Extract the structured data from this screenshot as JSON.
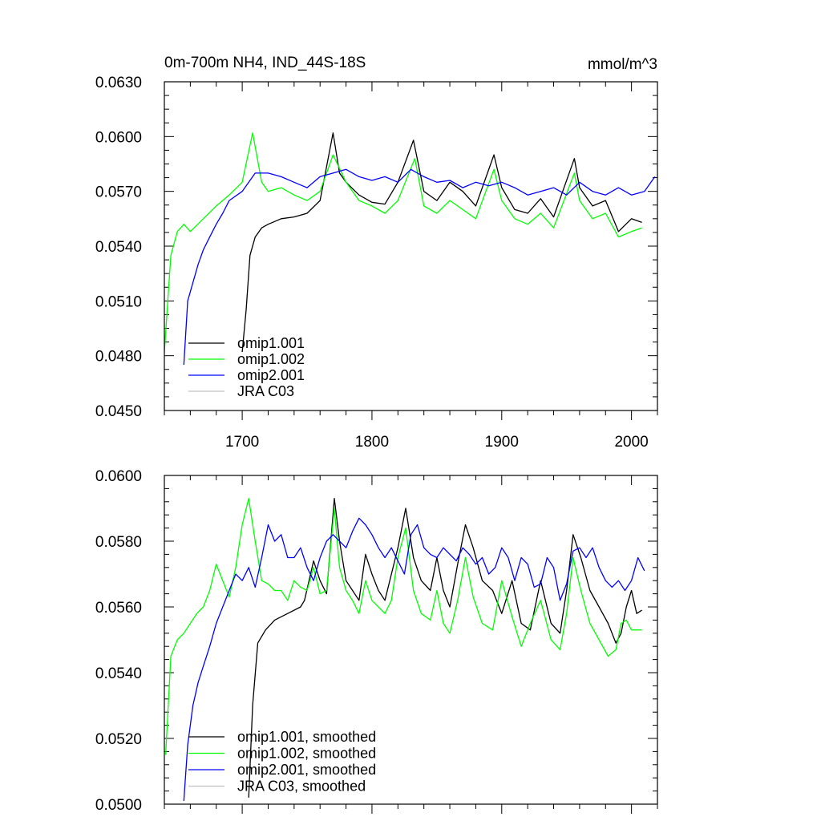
{
  "chart_data": [
    {
      "type": "line",
      "panel": "top",
      "title": "0m-700m NH4, IND_44S-18S",
      "units": "mmol/m^3",
      "xlim": [
        1640,
        2020
      ],
      "ylim": [
        0.045,
        0.063
      ],
      "xticks": [
        1700,
        1800,
        1900,
        2000
      ],
      "yticks": [
        0.045,
        0.048,
        0.051,
        0.054,
        0.057,
        0.06,
        0.063
      ],
      "ytick_labels": [
        "0.0450",
        "0.0480",
        "0.0510",
        "0.0540",
        "0.0570",
        "0.0600",
        "0.0630"
      ],
      "legend": {
        "position": "bottom-left"
      },
      "series": [
        {
          "name": "omip1.001",
          "color": "#000000",
          "x": [
            1700,
            1703,
            1706,
            1710,
            1715,
            1720,
            1730,
            1740,
            1750,
            1760,
            1770,
            1775,
            1780,
            1790,
            1800,
            1810,
            1820,
            1832,
            1840,
            1850,
            1860,
            1870,
            1880,
            1894,
            1900,
            1910,
            1920,
            1930,
            1940,
            1956,
            1960,
            1970,
            1980,
            1990,
            2000,
            2008
          ],
          "values": [
            0.0482,
            0.0505,
            0.0535,
            0.0545,
            0.055,
            0.0552,
            0.0555,
            0.0556,
            0.0558,
            0.0565,
            0.0602,
            0.058,
            0.0575,
            0.0568,
            0.0564,
            0.0563,
            0.0575,
            0.0598,
            0.057,
            0.0565,
            0.0575,
            0.057,
            0.0562,
            0.059,
            0.0572,
            0.056,
            0.0558,
            0.0566,
            0.0556,
            0.0588,
            0.0572,
            0.0562,
            0.0565,
            0.0548,
            0.0555,
            0.0553
          ]
        },
        {
          "name": "omip1.002",
          "color": "#00ff00",
          "x": [
            1640,
            1645,
            1650,
            1655,
            1660,
            1670,
            1680,
            1690,
            1700,
            1708,
            1715,
            1720,
            1730,
            1740,
            1750,
            1760,
            1770,
            1780,
            1790,
            1800,
            1810,
            1820,
            1833,
            1840,
            1850,
            1860,
            1870,
            1880,
            1894,
            1900,
            1910,
            1920,
            1930,
            1940,
            1956,
            1960,
            1970,
            1980,
            1990,
            2000,
            2008
          ],
          "values": [
            0.0482,
            0.0535,
            0.0548,
            0.0552,
            0.0548,
            0.0555,
            0.0562,
            0.0568,
            0.0575,
            0.0602,
            0.0575,
            0.057,
            0.0572,
            0.0568,
            0.0565,
            0.057,
            0.059,
            0.0575,
            0.0565,
            0.0562,
            0.0558,
            0.0565,
            0.0588,
            0.0562,
            0.0558,
            0.0565,
            0.056,
            0.0555,
            0.0582,
            0.0565,
            0.0555,
            0.0552,
            0.0558,
            0.055,
            0.058,
            0.0565,
            0.0555,
            0.0558,
            0.0545,
            0.0548,
            0.055
          ]
        },
        {
          "name": "omip2.001",
          "color": "#0000ff",
          "x": [
            1655,
            1658,
            1662,
            1666,
            1670,
            1675,
            1680,
            1685,
            1690,
            1700,
            1710,
            1720,
            1730,
            1740,
            1750,
            1760,
            1770,
            1780,
            1790,
            1800,
            1810,
            1820,
            1830,
            1840,
            1850,
            1860,
            1870,
            1880,
            1890,
            1900,
            1910,
            1920,
            1930,
            1940,
            1950,
            1960,
            1970,
            1980,
            1990,
            2000,
            2010,
            2018
          ],
          "values": [
            0.0475,
            0.051,
            0.052,
            0.053,
            0.0538,
            0.0545,
            0.0552,
            0.0558,
            0.0565,
            0.057,
            0.058,
            0.058,
            0.0578,
            0.0575,
            0.0572,
            0.0578,
            0.058,
            0.0582,
            0.0578,
            0.0576,
            0.0578,
            0.0575,
            0.0582,
            0.0578,
            0.0575,
            0.0576,
            0.0572,
            0.0575,
            0.0573,
            0.0575,
            0.0572,
            0.0568,
            0.057,
            0.0572,
            0.0568,
            0.0575,
            0.057,
            0.0568,
            0.0572,
            0.0568,
            0.057,
            0.0578
          ]
        },
        {
          "name": "JRA C03",
          "color": "#c0c0c0",
          "x": [],
          "values": []
        }
      ]
    },
    {
      "type": "line",
      "panel": "bottom",
      "xlim": [
        1640,
        2020
      ],
      "ylim": [
        0.05,
        0.06
      ],
      "xticks": [
        1700,
        1800,
        1900,
        2000
      ],
      "yticks": [
        0.05,
        0.052,
        0.054,
        0.056,
        0.058,
        0.06
      ],
      "ytick_labels": [
        "0.0500",
        "0.0520",
        "0.0540",
        "0.0560",
        "0.0580",
        "0.0600"
      ],
      "legend": {
        "position": "bottom-left"
      },
      "series": [
        {
          "name": "omip1.001, smoothed",
          "color": "#000000",
          "x": [
            1705,
            1708,
            1712,
            1718,
            1725,
            1735,
            1745,
            1748,
            1755,
            1760,
            1765,
            1771,
            1775,
            1780,
            1785,
            1790,
            1795,
            1800,
            1805,
            1810,
            1815,
            1820,
            1826,
            1832,
            1838,
            1845,
            1850,
            1855,
            1860,
            1866,
            1872,
            1878,
            1885,
            1893,
            1900,
            1908,
            1915,
            1922,
            1930,
            1938,
            1945,
            1950,
            1955,
            1961,
            1968,
            1975,
            1982,
            1988,
            1992,
            1996,
            2000,
            2004,
            2008
          ],
          "values": [
            0.0502,
            0.053,
            0.0549,
            0.0553,
            0.0556,
            0.0558,
            0.056,
            0.0562,
            0.0574,
            0.0568,
            0.0564,
            0.0593,
            0.058,
            0.0568,
            0.0565,
            0.0562,
            0.0576,
            0.057,
            0.0565,
            0.0562,
            0.057,
            0.0578,
            0.059,
            0.0575,
            0.0568,
            0.0565,
            0.0575,
            0.0565,
            0.056,
            0.0573,
            0.0585,
            0.0578,
            0.0568,
            0.0565,
            0.0558,
            0.0568,
            0.0555,
            0.0553,
            0.0568,
            0.0555,
            0.0552,
            0.0565,
            0.0582,
            0.0575,
            0.0565,
            0.056,
            0.0555,
            0.0549,
            0.0552,
            0.056,
            0.0565,
            0.0558,
            0.0559
          ]
        },
        {
          "name": "omip1.002, smoothed",
          "color": "#00ff00",
          "x": [
            1641,
            1645,
            1650,
            1655,
            1660,
            1665,
            1670,
            1675,
            1680,
            1685,
            1690,
            1695,
            1700,
            1705,
            1710,
            1715,
            1720,
            1725,
            1730,
            1735,
            1740,
            1745,
            1750,
            1755,
            1760,
            1765,
            1771,
            1775,
            1780,
            1785,
            1790,
            1795,
            1800,
            1805,
            1810,
            1815,
            1820,
            1826,
            1832,
            1838,
            1845,
            1850,
            1855,
            1860,
            1866,
            1872,
            1878,
            1885,
            1893,
            1900,
            1908,
            1915,
            1922,
            1930,
            1938,
            1945,
            1950,
            1955,
            1961,
            1968,
            1975,
            1982,
            1988,
            1992,
            1996,
            2000,
            2004,
            2008
          ],
          "values": [
            0.0515,
            0.0545,
            0.055,
            0.0552,
            0.0555,
            0.0558,
            0.056,
            0.0565,
            0.0573,
            0.0568,
            0.0563,
            0.0572,
            0.0585,
            0.0593,
            0.058,
            0.0568,
            0.0567,
            0.0565,
            0.0565,
            0.0562,
            0.0568,
            0.0566,
            0.0565,
            0.0572,
            0.0564,
            0.0565,
            0.059,
            0.0572,
            0.0565,
            0.0562,
            0.0558,
            0.0568,
            0.0562,
            0.056,
            0.0558,
            0.0562,
            0.0575,
            0.0584,
            0.0565,
            0.0558,
            0.0556,
            0.0565,
            0.0555,
            0.0552,
            0.0562,
            0.0575,
            0.0563,
            0.0555,
            0.0553,
            0.0568,
            0.0557,
            0.0548,
            0.0555,
            0.0562,
            0.055,
            0.0547,
            0.0558,
            0.0575,
            0.0565,
            0.0555,
            0.055,
            0.0545,
            0.0547,
            0.0555,
            0.0556,
            0.0553,
            0.0553,
            0.0553
          ]
        },
        {
          "name": "omip2.001, smoothed",
          "color": "#0000ff",
          "x": [
            1655,
            1658,
            1662,
            1666,
            1670,
            1675,
            1680,
            1685,
            1690,
            1695,
            1700,
            1705,
            1710,
            1715,
            1720,
            1725,
            1730,
            1735,
            1740,
            1745,
            1750,
            1755,
            1760,
            1765,
            1770,
            1775,
            1780,
            1785,
            1790,
            1795,
            1800,
            1805,
            1810,
            1815,
            1820,
            1825,
            1830,
            1835,
            1840,
            1845,
            1850,
            1855,
            1860,
            1865,
            1870,
            1875,
            1880,
            1885,
            1890,
            1895,
            1900,
            1905,
            1910,
            1915,
            1920,
            1925,
            1930,
            1935,
            1940,
            1945,
            1950,
            1955,
            1960,
            1965,
            1970,
            1975,
            1980,
            1985,
            1990,
            1995,
            2000,
            2005,
            2010
          ],
          "values": [
            0.0501,
            0.0518,
            0.053,
            0.0537,
            0.0542,
            0.0548,
            0.0555,
            0.056,
            0.0565,
            0.057,
            0.0568,
            0.0572,
            0.0566,
            0.0575,
            0.0585,
            0.058,
            0.0582,
            0.0575,
            0.0575,
            0.0578,
            0.0572,
            0.0568,
            0.0575,
            0.058,
            0.0582,
            0.058,
            0.0578,
            0.0583,
            0.0587,
            0.0585,
            0.0582,
            0.0578,
            0.0575,
            0.0578,
            0.0574,
            0.057,
            0.0582,
            0.0585,
            0.0578,
            0.0576,
            0.0575,
            0.0578,
            0.0576,
            0.0574,
            0.0578,
            0.0576,
            0.0573,
            0.0575,
            0.057,
            0.0572,
            0.0578,
            0.0575,
            0.0568,
            0.0575,
            0.0573,
            0.0566,
            0.0567,
            0.0575,
            0.0572,
            0.0562,
            0.0567,
            0.0577,
            0.0578,
            0.0575,
            0.0578,
            0.0572,
            0.0568,
            0.0566,
            0.0568,
            0.0565,
            0.0568,
            0.0575,
            0.0571
          ]
        },
        {
          "name": "JRA C03, smoothed",
          "color": "#c0c0c0",
          "x": [],
          "values": []
        }
      ]
    }
  ]
}
